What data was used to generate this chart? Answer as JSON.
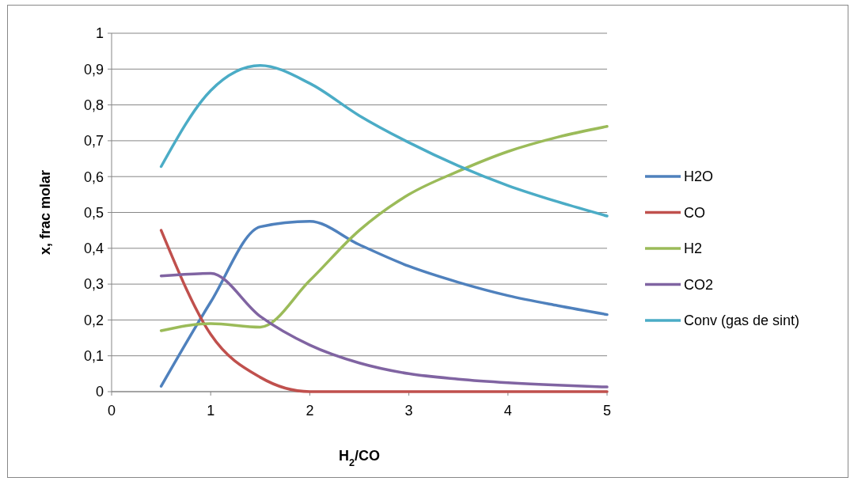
{
  "chart_data": {
    "type": "line",
    "xlabel": "H$_{2}$/CO",
    "ylabel": "x, frac molar",
    "x": [
      0.5,
      1,
      1.5,
      2,
      2.5,
      3,
      3.5,
      4,
      4.5,
      5
    ],
    "xlim": [
      0,
      5
    ],
    "xticks": [
      0,
      1,
      2,
      3,
      4,
      5
    ],
    "ylim": [
      0,
      1
    ],
    "yticks": [
      0,
      {
        "value": 0.1,
        "label": "0,1"
      },
      {
        "value": 0.2,
        "label": "0,2"
      },
      {
        "value": 0.3,
        "label": "0,3"
      },
      {
        "value": 0.4,
        "label": "0,4"
      },
      {
        "value": 0.5,
        "label": "0,5"
      },
      {
        "value": 0.6,
        "label": "0,6"
      },
      {
        "value": 0.7,
        "label": "0,7"
      },
      {
        "value": 0.8,
        "label": "0,8"
      },
      {
        "value": 0.9,
        "label": "0,9"
      },
      1
    ],
    "grid": "y",
    "legend": "right",
    "marker": "none",
    "line_style": "solid",
    "series": [
      {
        "name": "H2O",
        "color": "#4f81bd",
        "values": [
          0.015,
          0.25,
          0.46,
          0.475,
          0.41,
          0.35,
          0.305,
          0.268,
          0.24,
          0.215
        ]
      },
      {
        "name": "CO",
        "color": "#c0504d",
        "values": [
          0.45,
          0.16,
          0.04,
          0.0,
          0.0,
          0.0,
          0.0,
          0.0,
          0.0,
          0.0
        ]
      },
      {
        "name": "H2",
        "color": "#9bbb59",
        "values": [
          0.17,
          0.19,
          0.18,
          0.31,
          0.45,
          0.55,
          0.615,
          0.67,
          0.71,
          0.74
        ]
      },
      {
        "name": "CO2",
        "color": "#8064a2",
        "values": [
          0.323,
          0.33,
          0.21,
          0.13,
          0.08,
          0.05,
          0.035,
          0.025,
          0.018,
          0.013
        ]
      },
      {
        "name": "Conv (gas de sint)",
        "color": "#4bacc6",
        "values": [
          0.628,
          0.84,
          0.91,
          0.86,
          0.77,
          0.695,
          0.63,
          0.575,
          0.53,
          0.49
        ]
      }
    ]
  }
}
